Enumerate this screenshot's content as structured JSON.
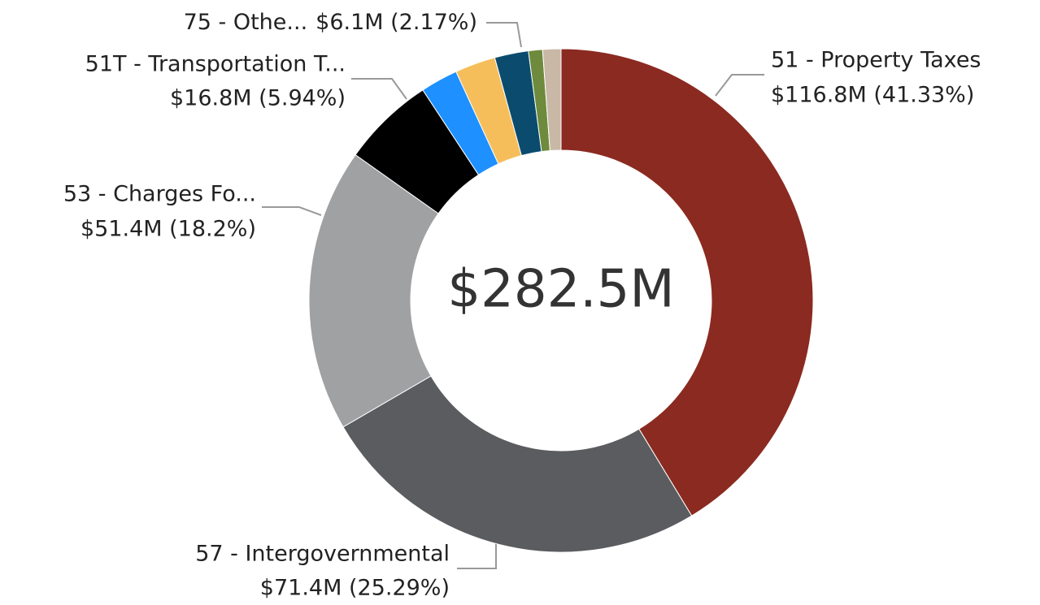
{
  "chart_data": {
    "type": "donut",
    "center_label": "$282.5M",
    "categories": [
      "51 - Property Taxes",
      "57 - Intergovernmental",
      "53 - Charges Fo...",
      "51T - Transportation T...",
      null,
      null,
      "75 - Othe...",
      null,
      null
    ],
    "values": [
      41.33,
      25.29,
      18.2,
      5.94,
      2.4,
      2.6,
      2.17,
      0.9,
      1.17
    ],
    "value_labels": [
      "$116.8M (41.33%)",
      "$71.4M (25.29%)",
      "$51.4M (18.2%)",
      "$16.8M (5.94%)",
      null,
      null,
      "$6.1M (2.17%)",
      null,
      null
    ],
    "colors": [
      "#8b2a20",
      "#5b5c5f",
      "#a0a1a3",
      "#000000",
      "#1e90ff",
      "#f6be5b",
      "#0b4c6e",
      "#6e8a3c",
      "#c9b8a6"
    ]
  }
}
